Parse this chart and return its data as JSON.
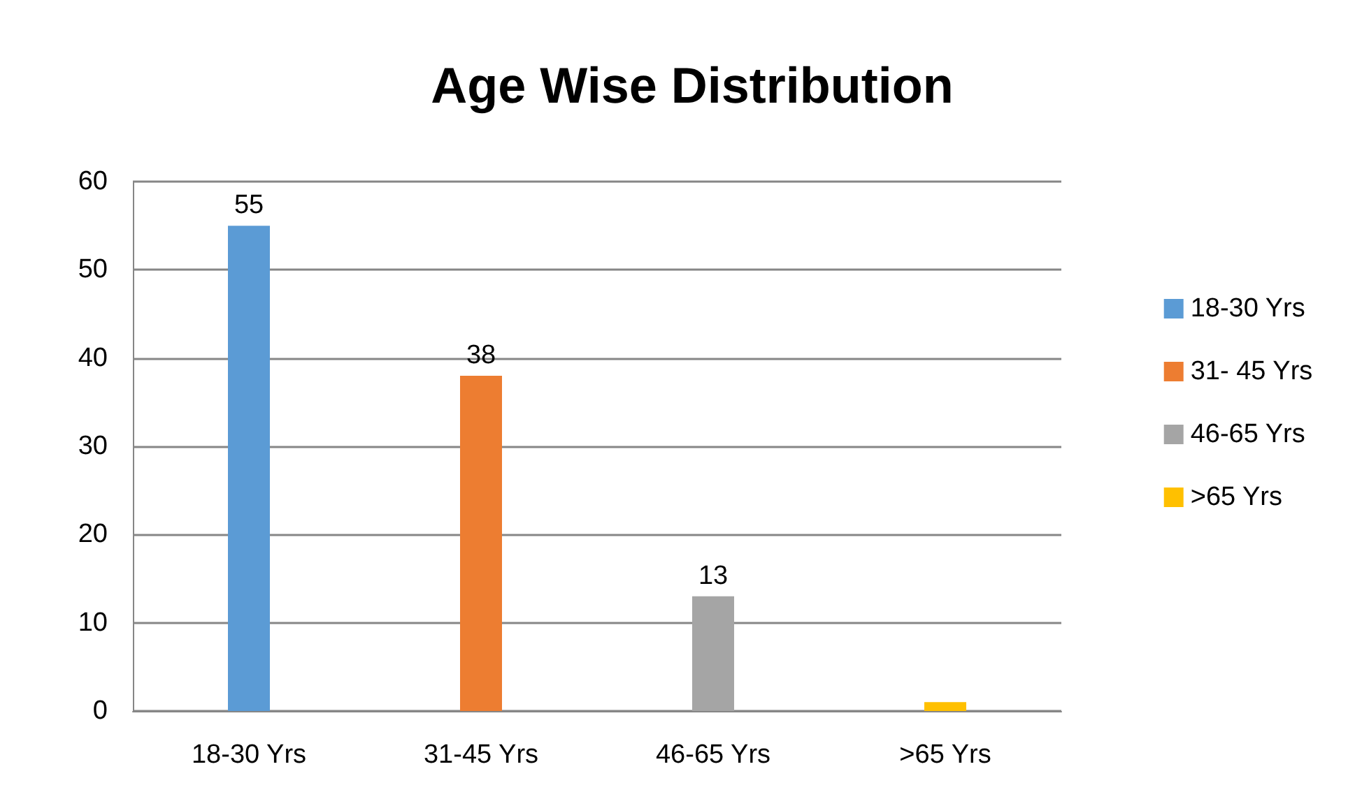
{
  "chart_data": {
    "type": "bar",
    "title": "Age Wise Distribution",
    "categories": [
      "18-30 Yrs",
      "31-45 Yrs",
      "46-65 Yrs",
      ">65 Yrs"
    ],
    "series": [
      {
        "name": "18-30 Yrs",
        "color": "#5b9bd5",
        "values": [
          55,
          null,
          null,
          null
        ],
        "value_labels": [
          "55",
          null,
          null,
          null
        ]
      },
      {
        "name": "31- 45 Yrs",
        "color": "#ed7d31",
        "values": [
          null,
          38,
          null,
          null
        ],
        "value_labels": [
          null,
          "38",
          null,
          null
        ]
      },
      {
        "name": "46-65 Yrs",
        "color": "#a5a5a5",
        "values": [
          null,
          null,
          13,
          null
        ],
        "value_labels": [
          null,
          null,
          "13",
          null
        ]
      },
      {
        "name": ">65 Yrs",
        "color": "#ffc000",
        "values": [
          null,
          null,
          null,
          1
        ],
        "value_labels": [
          null,
          null,
          null,
          null
        ]
      }
    ],
    "stacked": true,
    "ylim": [
      0,
      60
    ],
    "yticks": [
      0,
      10,
      20,
      30,
      40,
      50,
      60
    ],
    "grid": "y",
    "legend": "right"
  }
}
